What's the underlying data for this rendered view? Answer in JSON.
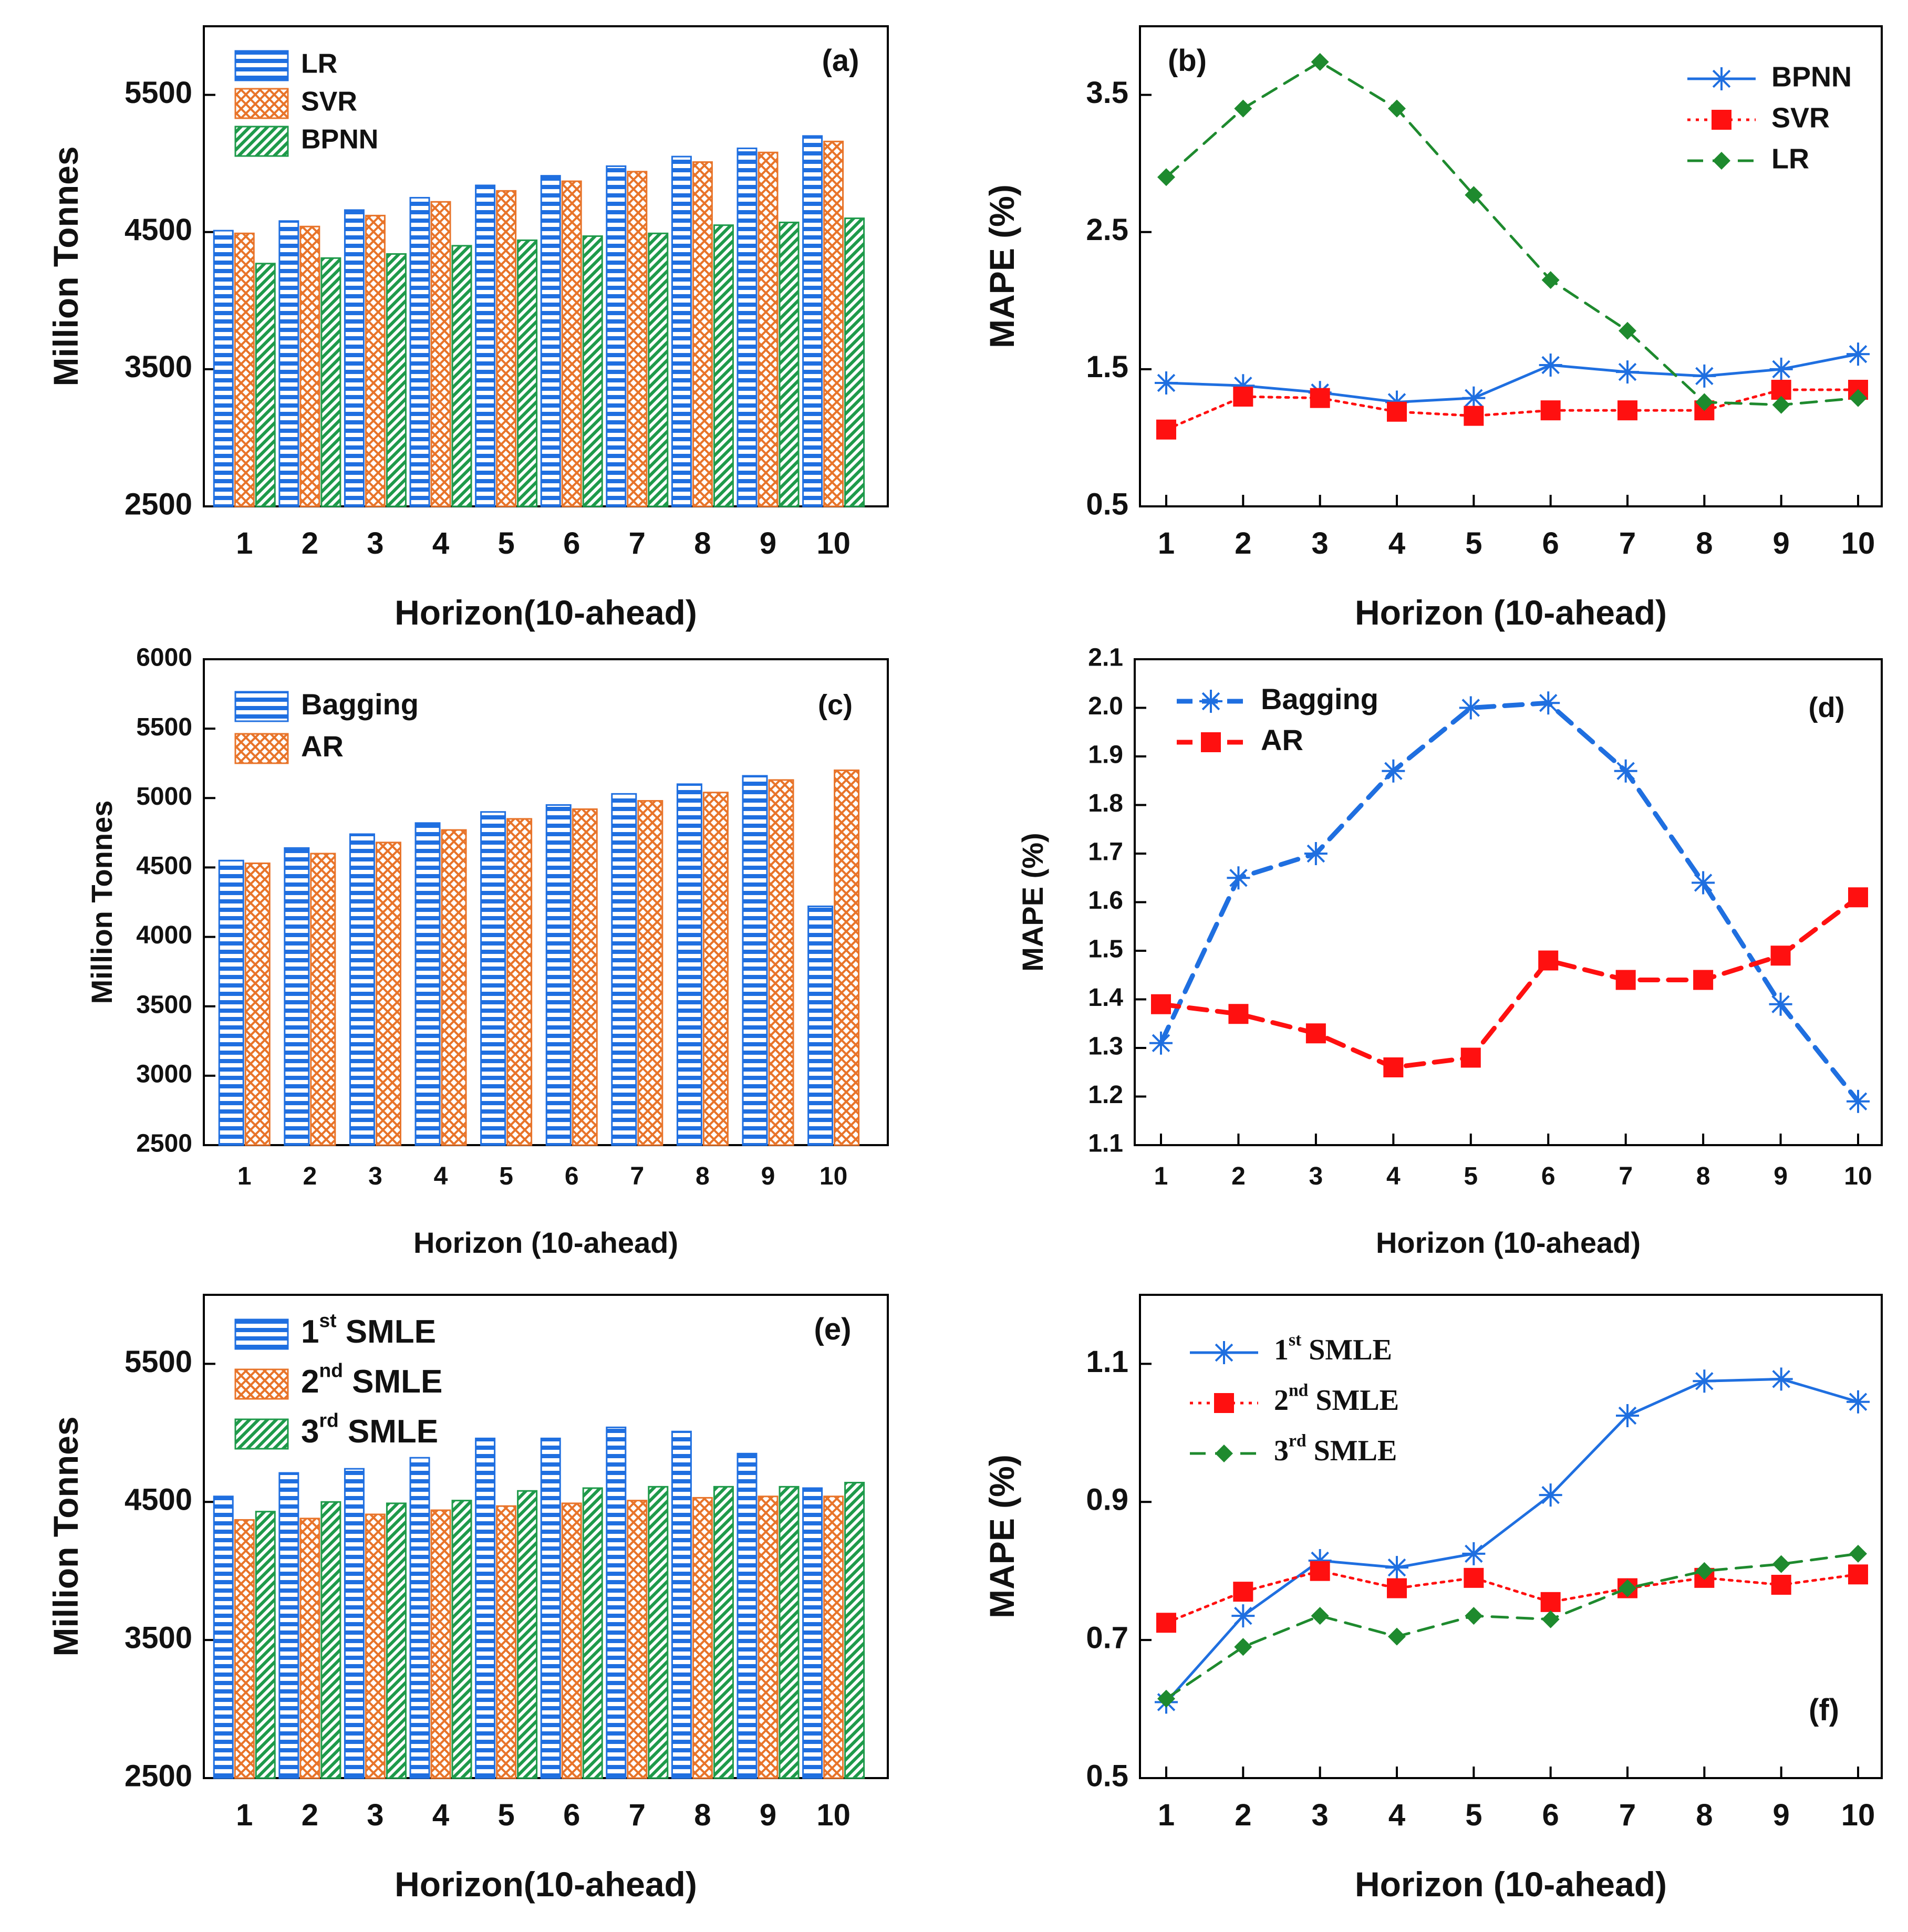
{
  "colors": {
    "blue": "#1f6fe0",
    "orange": "#e8742a",
    "green": "#1e9a4a",
    "red": "#ff1010",
    "dark_green": "#1e8a2e",
    "stripe_bg": "#ffffff"
  },
  "chart_data": [
    {
      "type": "bar",
      "panel": "(a)",
      "title": "",
      "xlabel": "Horizon(10-ahead)",
      "ylabel": "Million Tonnes",
      "ylim": [
        2500,
        6000
      ],
      "yticks": [
        2500,
        3500,
        4500,
        5500
      ],
      "categories": [
        "1",
        "2",
        "3",
        "4",
        "5",
        "6",
        "7",
        "8",
        "9",
        "10"
      ],
      "legend_position": "top-left",
      "series": [
        {
          "name": "LR",
          "color": "blue",
          "pattern": "hstripe",
          "values": [
            4510,
            4580,
            4660,
            4750,
            4840,
            4910,
            4980,
            5050,
            5110,
            5200
          ]
        },
        {
          "name": "SVR",
          "color": "orange",
          "pattern": "crosshatch",
          "values": [
            4490,
            4540,
            4620,
            4720,
            4800,
            4870,
            4940,
            5010,
            5080,
            5160
          ]
        },
        {
          "name": "BPNN",
          "color": "green",
          "pattern": "diag",
          "values": [
            4270,
            4310,
            4340,
            4400,
            4440,
            4470,
            4490,
            4550,
            4570,
            4600
          ]
        }
      ]
    },
    {
      "type": "line",
      "panel": "(b)",
      "title": "",
      "xlabel": "Horizon (10-ahead)",
      "ylabel": "MAPE (%)",
      "ylim": [
        0.5,
        4.0
      ],
      "yticks": [
        0.5,
        1.5,
        2.5,
        3.5
      ],
      "ytick_labels": [
        "0.5",
        "1.5",
        "2.5",
        "3.5"
      ],
      "x": [
        1,
        2,
        3,
        4,
        5,
        6,
        7,
        8,
        9,
        10
      ],
      "legend_position": "top-right",
      "series": [
        {
          "name": "BPNN",
          "color": "blue",
          "dash": "solid",
          "marker": "asterisk",
          "values": [
            1.4,
            1.38,
            1.33,
            1.26,
            1.29,
            1.53,
            1.48,
            1.45,
            1.5,
            1.61
          ]
        },
        {
          "name": "SVR",
          "color": "red",
          "dash": "dotted",
          "marker": "square",
          "values": [
            1.06,
            1.3,
            1.29,
            1.19,
            1.16,
            1.2,
            1.2,
            1.2,
            1.35,
            1.35
          ]
        },
        {
          "name": "LR",
          "color": "dark_green",
          "dash": "dashed",
          "marker": "diamond",
          "values": [
            2.9,
            3.4,
            3.74,
            3.4,
            2.77,
            2.15,
            1.78,
            1.26,
            1.24,
            1.29
          ]
        }
      ]
    },
    {
      "type": "bar",
      "panel": "(c)",
      "title": "",
      "xlabel": "Horizon (10-ahead)",
      "ylabel": "Million Tonnes",
      "ylim": [
        2500,
        6000
      ],
      "yticks": [
        2500,
        3000,
        3500,
        4000,
        4500,
        5000,
        5500,
        6000
      ],
      "categories": [
        "1",
        "2",
        "3",
        "4",
        "5",
        "6",
        "7",
        "8",
        "9",
        "10"
      ],
      "legend_position": "top-left",
      "series": [
        {
          "name": "Bagging",
          "color": "blue",
          "pattern": "hstripe",
          "values": [
            4550,
            4640,
            4740,
            4820,
            4900,
            4950,
            5030,
            5100,
            5160,
            4220
          ]
        },
        {
          "name": "AR",
          "color": "orange",
          "pattern": "crosshatch",
          "values": [
            4530,
            4600,
            4680,
            4770,
            4850,
            4920,
            4980,
            5040,
            5130,
            5200
          ]
        }
      ]
    },
    {
      "type": "line",
      "panel": "(d)",
      "title": "",
      "xlabel": "Horizon (10-ahead)",
      "ylabel": "MAPE (%)",
      "ylim": [
        1.1,
        2.1
      ],
      "yticks": [
        1.1,
        1.2,
        1.3,
        1.4,
        1.5,
        1.6,
        1.7,
        1.8,
        1.9,
        2.0,
        2.1
      ],
      "ytick_labels": [
        "1.1",
        "1.2",
        "1.3",
        "1.4",
        "1.5",
        "1.6",
        "1.7",
        "1.8",
        "1.9",
        "2.0",
        "2.1"
      ],
      "x": [
        1,
        2,
        3,
        4,
        5,
        6,
        7,
        8,
        9,
        10
      ],
      "legend_position": "top-left",
      "series": [
        {
          "name": "Bagging",
          "color": "blue",
          "dash": "dashed",
          "marker": "asterisk",
          "values": [
            1.31,
            1.65,
            1.7,
            1.87,
            2.0,
            2.01,
            1.87,
            1.64,
            1.39,
            1.19
          ]
        },
        {
          "name": "AR",
          "color": "red",
          "dash": "dashed",
          "marker": "square",
          "values": [
            1.39,
            1.37,
            1.33,
            1.26,
            1.28,
            1.48,
            1.44,
            1.44,
            1.49,
            1.61
          ]
        }
      ]
    },
    {
      "type": "bar",
      "panel": "(e)",
      "title": "",
      "xlabel": "Horizon(10-ahead)",
      "ylabel": "Million Tonnes",
      "ylim": [
        2500,
        6000
      ],
      "yticks": [
        2500,
        3500,
        4500,
        5500
      ],
      "categories": [
        "1",
        "2",
        "3",
        "4",
        "5",
        "6",
        "7",
        "8",
        "9",
        "10"
      ],
      "legend_position": "top-left",
      "series": [
        {
          "name": "SMLE",
          "ordinal": "1",
          "ordinal_suffix": "st",
          "color": "blue",
          "pattern": "hstripe",
          "values": [
            4540,
            4710,
            4740,
            4820,
            4960,
            4960,
            5040,
            5010,
            4850,
            4600
          ]
        },
        {
          "name": "SMLE",
          "ordinal": "2",
          "ordinal_suffix": "nd",
          "color": "orange",
          "pattern": "crosshatch",
          "values": [
            4370,
            4380,
            4410,
            4440,
            4470,
            4490,
            4510,
            4530,
            4540,
            4540
          ]
        },
        {
          "name": "SMLE",
          "ordinal": "3",
          "ordinal_suffix": "rd",
          "color": "green",
          "pattern": "diag",
          "values": [
            4430,
            4500,
            4490,
            4510,
            4580,
            4600,
            4610,
            4610,
            4610,
            4640
          ]
        }
      ]
    },
    {
      "type": "line",
      "panel": "(f)",
      "title": "",
      "xlabel": "Horizon (10-ahead)",
      "ylabel": "MAPE (%)",
      "ylim": [
        0.5,
        1.2
      ],
      "yticks": [
        0.5,
        0.7,
        0.9,
        1.1
      ],
      "ytick_labels": [
        "0.5",
        "0.7",
        "0.9",
        "1.1"
      ],
      "x": [
        1,
        2,
        3,
        4,
        5,
        6,
        7,
        8,
        9,
        10
      ],
      "legend_position": "top-left",
      "series": [
        {
          "name": "SMLE",
          "ordinal": "1",
          "ordinal_suffix": "st",
          "color": "blue",
          "dash": "solid",
          "marker": "asterisk",
          "values": [
            0.61,
            0.735,
            0.815,
            0.805,
            0.825,
            0.91,
            1.025,
            1.075,
            1.078,
            1.045
          ]
        },
        {
          "name": "SMLE",
          "ordinal": "2",
          "ordinal_suffix": "nd",
          "color": "red",
          "dash": "dotted",
          "marker": "square",
          "values": [
            0.725,
            0.77,
            0.8,
            0.775,
            0.79,
            0.755,
            0.775,
            0.79,
            0.78,
            0.795
          ]
        },
        {
          "name": "SMLE",
          "ordinal": "3",
          "ordinal_suffix": "rd",
          "color": "dark_green",
          "dash": "dashed",
          "marker": "diamond",
          "values": [
            0.615,
            0.69,
            0.735,
            0.705,
            0.735,
            0.73,
            0.775,
            0.8,
            0.81,
            0.825
          ]
        }
      ]
    }
  ]
}
